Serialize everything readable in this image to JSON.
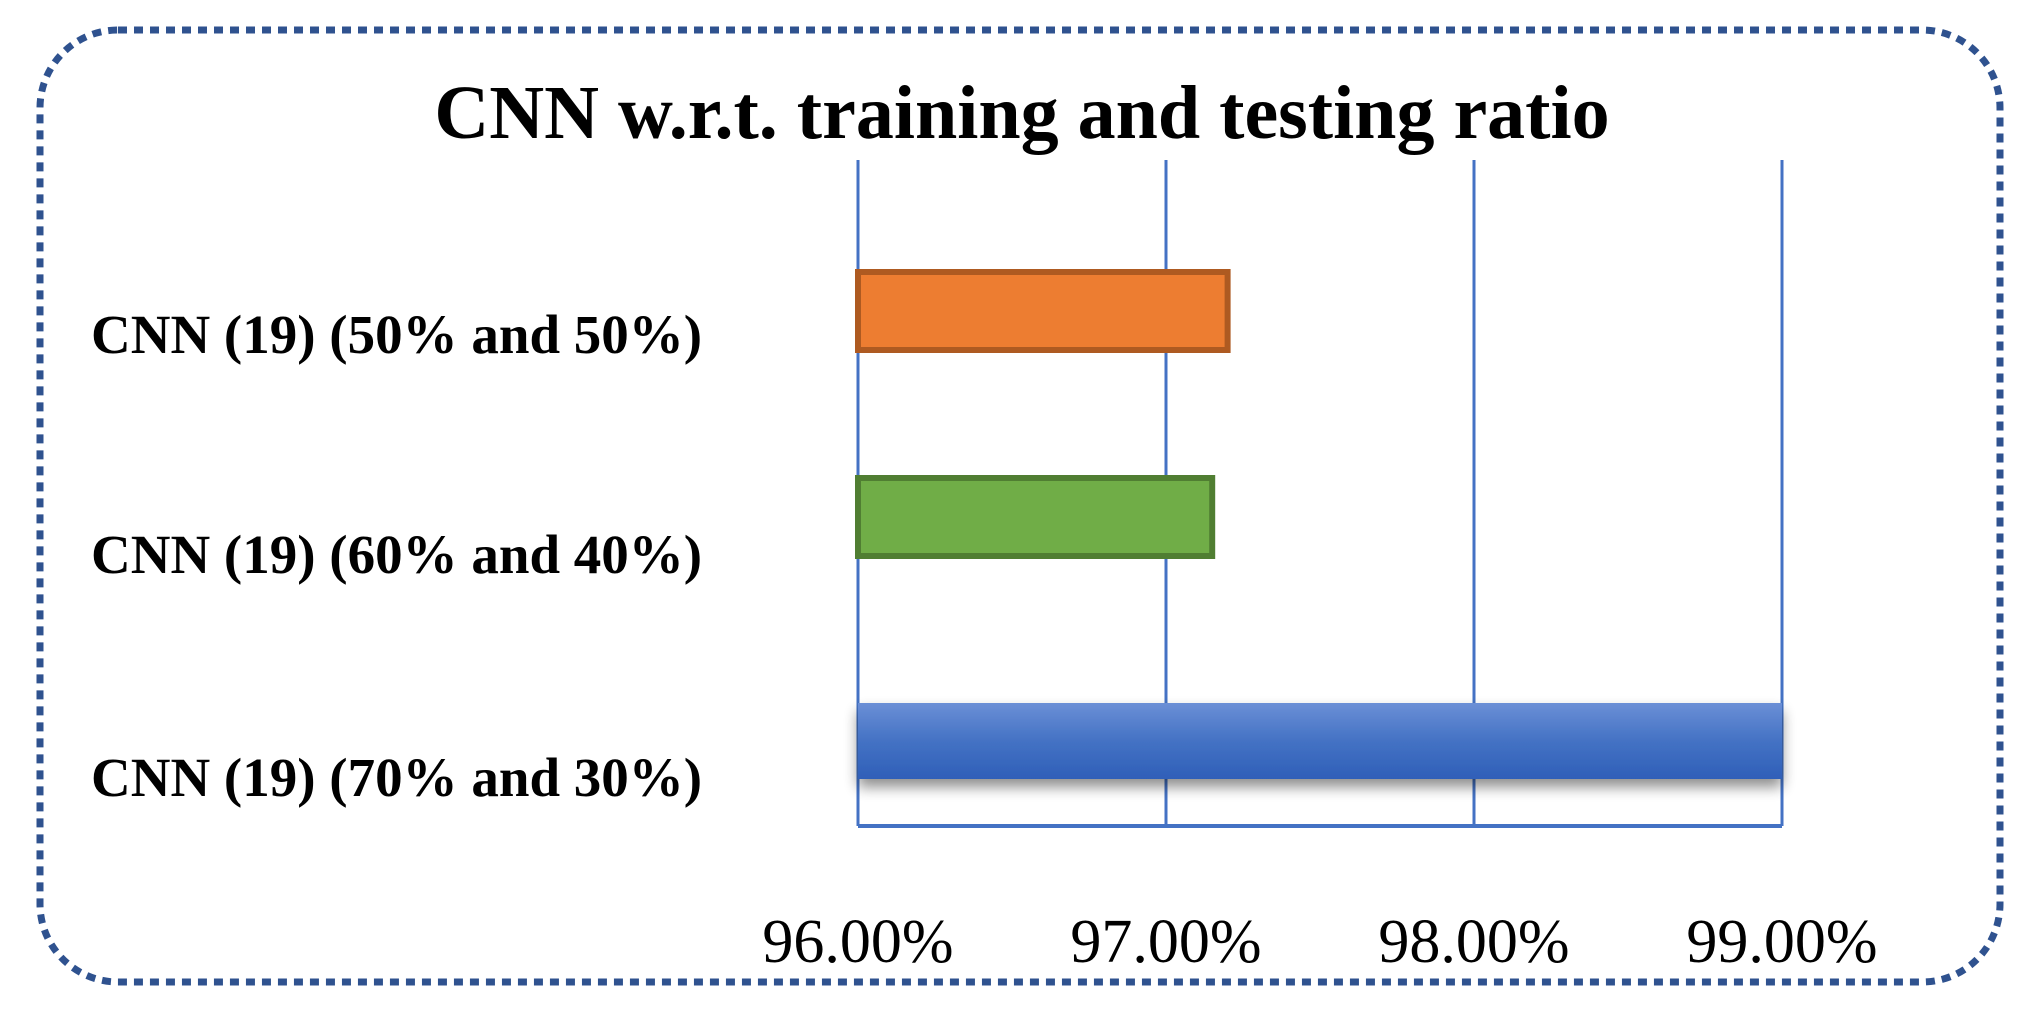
{
  "chart_data": {
    "type": "bar",
    "orientation": "horizontal",
    "title": "CNN w.r.t. training and testing ratio",
    "xlabel": "",
    "ylabel": "",
    "categories": [
      "CNN (19) (50% and 50%)",
      "CNN (19) (60% and 40%)",
      "CNN (19) (70% and 30%)"
    ],
    "values": [
      97.2,
      97.15,
      99.0
    ],
    "bar_colors": [
      "#ed7d31",
      "#70ad47",
      "#4472c4"
    ],
    "bar_border_colors": [
      "#ae5a21",
      "#507e32",
      "#2f528f"
    ],
    "xlim": [
      96.0,
      99.0
    ],
    "x_ticks": [
      96.0,
      97.0,
      98.0,
      99.0
    ],
    "x_tick_labels": [
      "96.00%",
      "97.00%",
      "98.00%",
      "99.00%"
    ],
    "grid": "vertical",
    "grid_color": "#4472c4",
    "legend": "none",
    "frame": "rounded dashed border",
    "frame_color": "#2f528f"
  }
}
